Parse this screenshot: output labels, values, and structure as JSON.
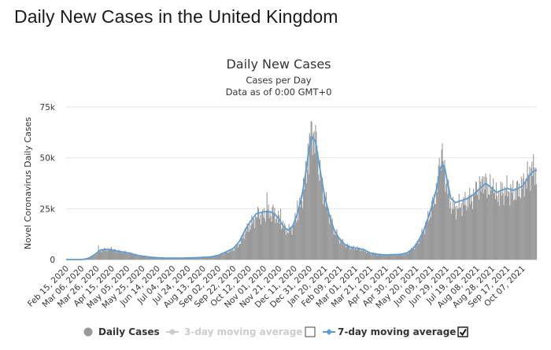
{
  "page_title": "Daily New Cases in the United Kingdom",
  "chart_data": {
    "type": "bar",
    "title": "Daily New Cases",
    "subtitle_1": "Cases per Day",
    "subtitle_2": "Data as of 0:00 GMT+0",
    "ylabel": "Novel Coronavirus Daily Cases",
    "ylim": [
      0,
      75000
    ],
    "yticks": [
      0,
      25000,
      50000,
      75000
    ],
    "ytick_labels": [
      "0",
      "25k",
      "50k",
      "75k"
    ],
    "x_labels": [
      "Feb 15, 2020",
      "Mar 06, 2020",
      "Mar 26, 2020",
      "Apr 15, 2020",
      "May 05, 2020",
      "May 25, 2020",
      "Jun 14, 2020",
      "Jul 04, 2020",
      "Jul 24, 2020",
      "Aug 13, 2020",
      "Sep 02, 2020",
      "Sep 22, 2020",
      "Oct 12, 2020",
      "Nov 01, 2020",
      "Nov 21, 2020",
      "Dec 11, 2020",
      "Dec 31, 2020",
      "Jan 20, 2021",
      "Feb 09, 2021",
      "Mar 01, 2021",
      "Mar 21, 2021",
      "Apr 10, 2021",
      "Apr 30, 2021",
      "May 20, 2021",
      "Jun 09, 2021",
      "Jun 29, 2021",
      "Jul 19, 2021",
      "Aug 08, 2021",
      "Aug 28, 2021",
      "Sep 17, 2021",
      "Oct 07, 2021"
    ],
    "x_label_day_index": [
      0,
      20,
      40,
      60,
      80,
      100,
      120,
      140,
      160,
      180,
      200,
      220,
      240,
      260,
      280,
      300,
      320,
      340,
      360,
      380,
      400,
      420,
      440,
      460,
      480,
      500,
      520,
      540,
      560,
      580,
      600
    ],
    "days_total": 620,
    "series": [
      {
        "name": "Daily Cases",
        "color": "#999999",
        "key_points": [
          [
            0,
            0
          ],
          [
            15,
            0
          ],
          [
            22,
            50
          ],
          [
            30,
            600
          ],
          [
            38,
            2500
          ],
          [
            45,
            4500
          ],
          [
            52,
            5000
          ],
          [
            60,
            4800
          ],
          [
            70,
            4000
          ],
          [
            80,
            3500
          ],
          [
            95,
            2000
          ],
          [
            110,
            1200
          ],
          [
            130,
            700
          ],
          [
            150,
            700
          ],
          [
            170,
            900
          ],
          [
            190,
            1200
          ],
          [
            200,
            2000
          ],
          [
            210,
            3500
          ],
          [
            220,
            5000
          ],
          [
            228,
            8000
          ],
          [
            236,
            14000
          ],
          [
            242,
            17000
          ],
          [
            250,
            21000
          ],
          [
            260,
            22000
          ],
          [
            268,
            23000
          ],
          [
            274,
            22000
          ],
          [
            280,
            20000
          ],
          [
            286,
            16000
          ],
          [
            292,
            14000
          ],
          [
            298,
            16000
          ],
          [
            304,
            22000
          ],
          [
            310,
            30000
          ],
          [
            316,
            42000
          ],
          [
            320,
            55000
          ],
          [
            324,
            60000
          ],
          [
            328,
            58000
          ],
          [
            334,
            42000
          ],
          [
            340,
            30000
          ],
          [
            346,
            22000
          ],
          [
            352,
            15000
          ],
          [
            358,
            11000
          ],
          [
            366,
            7500
          ],
          [
            374,
            6000
          ],
          [
            384,
            5500
          ],
          [
            392,
            4500
          ],
          [
            400,
            3000
          ],
          [
            410,
            2500
          ],
          [
            420,
            2200
          ],
          [
            430,
            2400
          ],
          [
            440,
            2500
          ],
          [
            448,
            3000
          ],
          [
            455,
            5000
          ],
          [
            462,
            8000
          ],
          [
            470,
            14000
          ],
          [
            476,
            20000
          ],
          [
            482,
            27000
          ],
          [
            488,
            35000
          ],
          [
            492,
            45000
          ],
          [
            495,
            48000
          ],
          [
            498,
            44000
          ],
          [
            502,
            35000
          ],
          [
            506,
            27000
          ],
          [
            512,
            25000
          ],
          [
            520,
            27000
          ],
          [
            528,
            29000
          ],
          [
            536,
            31000
          ],
          [
            544,
            35000
          ],
          [
            552,
            37000
          ],
          [
            560,
            34000
          ],
          [
            566,
            31000
          ],
          [
            572,
            33000
          ],
          [
            580,
            34000
          ],
          [
            588,
            33000
          ],
          [
            594,
            34000
          ],
          [
            600,
            36000
          ],
          [
            607,
            40000
          ],
          [
            613,
            44000
          ],
          [
            619,
            43000
          ]
        ],
        "spikes": [
          [
            42,
            7000
          ],
          [
            59,
            6200
          ],
          [
            253,
            25000
          ],
          [
            264,
            33000
          ],
          [
            272,
            27000
          ],
          [
            282,
            25000
          ],
          [
            304,
            29000
          ],
          [
            312,
            40000
          ],
          [
            318,
            57000
          ],
          [
            322,
            68000
          ],
          [
            325,
            62000
          ],
          [
            330,
            56000
          ],
          [
            484,
            32000
          ],
          [
            491,
            50000
          ],
          [
            494,
            54000
          ],
          [
            540,
            38000
          ],
          [
            548,
            41000
          ],
          [
            562,
            40000
          ],
          [
            605,
            40000
          ],
          [
            612,
            45000
          ]
        ]
      },
      {
        "name": "3-day moving average",
        "color": "#cccccc",
        "visible": false
      },
      {
        "name": "7-day moving average",
        "color": "#5b9cd6",
        "visible": true,
        "key_points": [
          [
            0,
            0
          ],
          [
            15,
            0
          ],
          [
            22,
            50
          ],
          [
            30,
            700
          ],
          [
            38,
            2600
          ],
          [
            45,
            4700
          ],
          [
            52,
            5000
          ],
          [
            60,
            4700
          ],
          [
            70,
            4000
          ],
          [
            80,
            3400
          ],
          [
            95,
            2000
          ],
          [
            110,
            1200
          ],
          [
            130,
            700
          ],
          [
            150,
            700
          ],
          [
            170,
            900
          ],
          [
            190,
            1300
          ],
          [
            200,
            2100
          ],
          [
            210,
            3700
          ],
          [
            220,
            5500
          ],
          [
            228,
            9000
          ],
          [
            236,
            15000
          ],
          [
            242,
            18500
          ],
          [
            250,
            22500
          ],
          [
            260,
            23500
          ],
          [
            268,
            23500
          ],
          [
            274,
            22500
          ],
          [
            280,
            20000
          ],
          [
            286,
            16000
          ],
          [
            292,
            14500
          ],
          [
            298,
            16500
          ],
          [
            304,
            22500
          ],
          [
            310,
            31000
          ],
          [
            316,
            45000
          ],
          [
            320,
            56000
          ],
          [
            324,
            60000
          ],
          [
            328,
            58000
          ],
          [
            334,
            44000
          ],
          [
            340,
            31000
          ],
          [
            346,
            22000
          ],
          [
            352,
            15000
          ],
          [
            358,
            11000
          ],
          [
            366,
            7500
          ],
          [
            374,
            6000
          ],
          [
            384,
            5500
          ],
          [
            392,
            4800
          ],
          [
            400,
            3200
          ],
          [
            410,
            2600
          ],
          [
            420,
            2300
          ],
          [
            430,
            2400
          ],
          [
            440,
            2600
          ],
          [
            448,
            3200
          ],
          [
            455,
            5000
          ],
          [
            462,
            8200
          ],
          [
            470,
            14000
          ],
          [
            476,
            20500
          ],
          [
            482,
            27500
          ],
          [
            488,
            36000
          ],
          [
            492,
            45000
          ],
          [
            495,
            47000
          ],
          [
            498,
            45000
          ],
          [
            502,
            37000
          ],
          [
            506,
            30000
          ],
          [
            512,
            28000
          ],
          [
            520,
            29000
          ],
          [
            528,
            30000
          ],
          [
            536,
            32000
          ],
          [
            544,
            35000
          ],
          [
            552,
            37500
          ],
          [
            560,
            35000
          ],
          [
            566,
            33000
          ],
          [
            572,
            34000
          ],
          [
            580,
            35000
          ],
          [
            588,
            34000
          ],
          [
            594,
            35000
          ],
          [
            600,
            36000
          ],
          [
            607,
            40000
          ],
          [
            613,
            43000
          ],
          [
            619,
            44000
          ]
        ]
      }
    ],
    "legend": {
      "placement": "bottom",
      "items": [
        {
          "label": "Daily Cases",
          "color": "#333333",
          "marker": "circle",
          "marker_color": "#999999"
        },
        {
          "label": "3-day moving average",
          "color": "#cccccc",
          "marker": "line-dot",
          "marker_color": "#cccccc",
          "checkbox": false
        },
        {
          "label": "7-day moving average",
          "color": "#333333",
          "marker": "line-diamond",
          "marker_color": "#5b9cd6",
          "checkbox": true
        }
      ]
    }
  }
}
